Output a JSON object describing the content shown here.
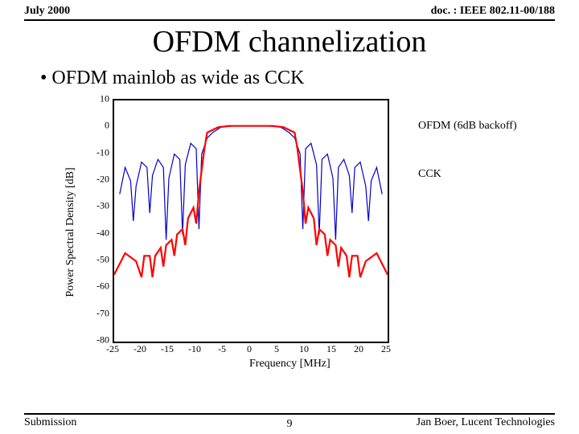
{
  "header": {
    "left": "July 2000",
    "right": "doc. : IEEE 802.11-00/188"
  },
  "title": "OFDM channelization",
  "bullet": "• OFDM mainlob as wide as CCK",
  "chart": {
    "type": "line",
    "xlabel": "Frequency [MHz]",
    "ylabel": "Power Spectral Density [dB]",
    "xlim": [
      -25,
      25
    ],
    "ylim": [
      -80,
      10
    ],
    "xtick_step": 5,
    "ytick_step": 10,
    "background_color": "#ffffff",
    "border_color": "#000000",
    "series": {
      "ofdm": {
        "label": "OFDM (6dB backoff)",
        "color": "#ff0000",
        "width": 2.2,
        "points": [
          [
            -25,
            -55
          ],
          [
            -23,
            -47
          ],
          [
            -21,
            -50
          ],
          [
            -20,
            -56
          ],
          [
            -19.5,
            -48
          ],
          [
            -18.5,
            -48
          ],
          [
            -18,
            -56
          ],
          [
            -17.5,
            -48
          ],
          [
            -16.5,
            -45
          ],
          [
            -16,
            -52
          ],
          [
            -15.5,
            -44
          ],
          [
            -14.5,
            -42
          ],
          [
            -14,
            -48
          ],
          [
            -13.5,
            -40
          ],
          [
            -12.5,
            -38
          ],
          [
            -12,
            -44
          ],
          [
            -11.5,
            -34
          ],
          [
            -10.5,
            -30
          ],
          [
            -10,
            -36
          ],
          [
            -9.5,
            -24
          ],
          [
            -9,
            -16
          ],
          [
            -8.5,
            -8
          ],
          [
            -8,
            -2
          ],
          [
            -6,
            0
          ],
          [
            -4,
            0.5
          ],
          [
            0,
            0.5
          ],
          [
            4,
            0.5
          ],
          [
            6,
            0
          ],
          [
            8,
            -2
          ],
          [
            8.5,
            -8
          ],
          [
            9,
            -16
          ],
          [
            9.5,
            -24
          ],
          [
            10,
            -36
          ],
          [
            10.5,
            -30
          ],
          [
            11.5,
            -34
          ],
          [
            12,
            -44
          ],
          [
            12.5,
            -38
          ],
          [
            13.5,
            -40
          ],
          [
            14,
            -48
          ],
          [
            14.5,
            -42
          ],
          [
            15.5,
            -44
          ],
          [
            16,
            -52
          ],
          [
            16.5,
            -45
          ],
          [
            17.5,
            -48
          ],
          [
            18,
            -56
          ],
          [
            18.5,
            -48
          ],
          [
            19.5,
            -48
          ],
          [
            20,
            -56
          ],
          [
            21,
            -50
          ],
          [
            23,
            -47
          ],
          [
            25,
            -55
          ]
        ]
      },
      "cck": {
        "label": "CCK",
        "color": "#0000cc",
        "width": 1.2,
        "points": [
          [
            -24,
            -25
          ],
          [
            -23,
            -15
          ],
          [
            -22,
            -20
          ],
          [
            -21.5,
            -35
          ],
          [
            -21,
            -22
          ],
          [
            -20,
            -13
          ],
          [
            -19,
            -15
          ],
          [
            -18.5,
            -32
          ],
          [
            -18,
            -18
          ],
          [
            -17,
            -12
          ],
          [
            -16,
            -15
          ],
          [
            -15.5,
            -42
          ],
          [
            -15,
            -19
          ],
          [
            -14,
            -10
          ],
          [
            -13,
            -12
          ],
          [
            -12.5,
            -40
          ],
          [
            -12,
            -14
          ],
          [
            -11,
            -6
          ],
          [
            -10,
            -8
          ],
          [
            -9.5,
            -38
          ],
          [
            -9,
            -10
          ],
          [
            -8,
            -4
          ],
          [
            -7,
            -2
          ],
          [
            -5.5,
            0
          ],
          [
            -3,
            0.5
          ],
          [
            0,
            0.5
          ],
          [
            3,
            0.5
          ],
          [
            5.5,
            0
          ],
          [
            7,
            -2
          ],
          [
            8,
            -4
          ],
          [
            9,
            -10
          ],
          [
            9.5,
            -38
          ],
          [
            10,
            -8
          ],
          [
            11,
            -6
          ],
          [
            12,
            -14
          ],
          [
            12.5,
            -40
          ],
          [
            13,
            -12
          ],
          [
            14,
            -10
          ],
          [
            15,
            -19
          ],
          [
            15.5,
            -42
          ],
          [
            16,
            -15
          ],
          [
            17,
            -12
          ],
          [
            18,
            -18
          ],
          [
            18.5,
            -32
          ],
          [
            19,
            -15
          ],
          [
            20,
            -13
          ],
          [
            21,
            -22
          ],
          [
            21.5,
            -35
          ],
          [
            22,
            -20
          ],
          [
            23,
            -15
          ],
          [
            24,
            -25
          ]
        ]
      }
    }
  },
  "footer": {
    "left": "Submission",
    "right": "Jan Boer, Lucent Technologies",
    "page": "9"
  }
}
